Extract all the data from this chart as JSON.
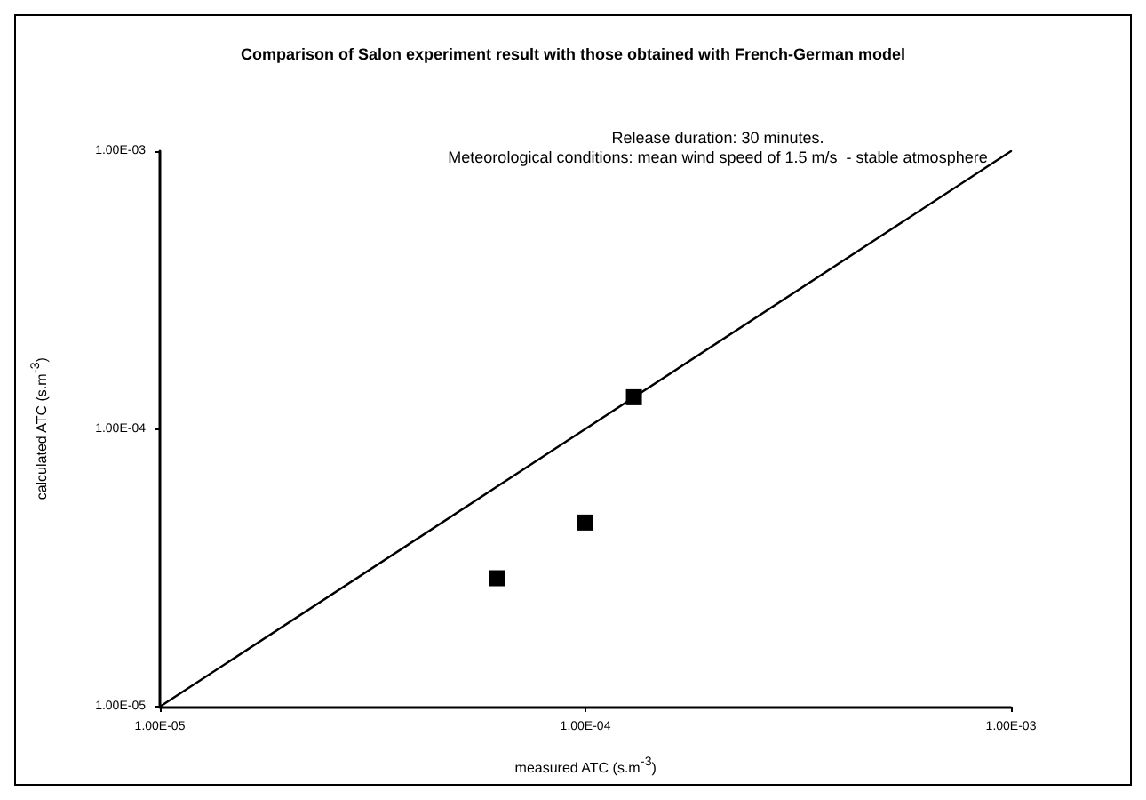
{
  "chart_data": {
    "type": "scatter",
    "title": "Comparison of Salon experiment result with those obtained with French-German model",
    "subtitle": "Release duration: 30 minutes.\nMeteorological conditions: mean wind speed of 1.5 m/s  - stable atmosphere",
    "xlabel": "measured ATC (s.m$^{-3}$)",
    "ylabel": "calculated ATC (s.m$^{-3}$)",
    "series": [
      {
        "color": "#000000",
        "x": [
          6.2e-05,
          0.0001,
          0.00013
        ],
        "values": [
          2.9e-05,
          4.6e-05,
          0.00013
        ],
        "marker": "square"
      },
      {
        "type": "line",
        "color": "#000000",
        "x": [
          1e-05,
          0.001
        ],
        "values": [
          1e-05,
          0.001
        ],
        "marker": "none",
        "line_style": "solid"
      }
    ],
    "log": "xy",
    "xlim": [
      1e-05,
      0.001
    ],
    "ylim": [
      1e-05,
      0.001
    ],
    "xticks": [
      {
        "value": 1e-05,
        "label": "1.00E-05"
      },
      {
        "value": 0.0001,
        "label": "1.00E-04"
      },
      {
        "value": 0.001,
        "label": "1.00E-03"
      }
    ],
    "yticks": [
      {
        "value": 1e-05,
        "label": "1.00E-05"
      },
      {
        "value": 0.0001,
        "label": "1.00E-04"
      },
      {
        "value": 0.001,
        "label": "1.00E-03"
      }
    ],
    "grid": false
  }
}
